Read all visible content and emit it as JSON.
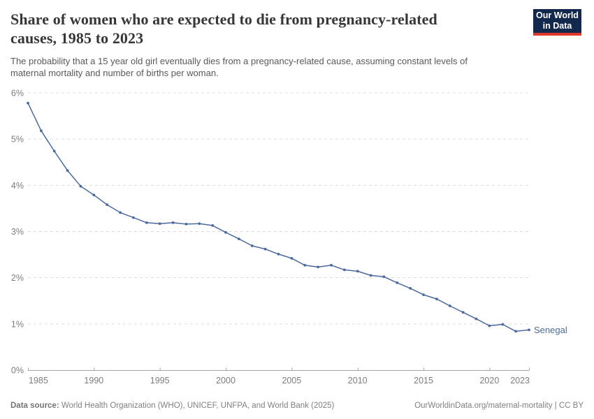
{
  "header": {
    "title_lines": [
      "Share of women who are expected to die from pregnancy-related",
      "causes, 1985 to 2023"
    ],
    "subtitle_lines": [
      "The probability that a 15 year old girl eventually dies from a pregnancy-related cause, assuming constant levels of",
      "maternal mortality and number of births per woman."
    ],
    "logo_lines": [
      "Our World",
      "in Data"
    ]
  },
  "chart_data": {
    "type": "line",
    "title": "Share of women who are expected to die from pregnancy-related causes, 1985 to 2023",
    "x": [
      1985,
      1986,
      1987,
      1988,
      1989,
      1990,
      1991,
      1992,
      1993,
      1994,
      1995,
      1996,
      1997,
      1998,
      1999,
      2000,
      2001,
      2002,
      2003,
      2004,
      2005,
      2006,
      2007,
      2008,
      2009,
      2010,
      2011,
      2012,
      2013,
      2014,
      2015,
      2016,
      2017,
      2018,
      2019,
      2020,
      2021,
      2022,
      2023
    ],
    "series": [
      {
        "name": "Senegal",
        "color": "#4c6a9c",
        "values": [
          5.78,
          5.18,
          4.74,
          4.32,
          3.98,
          3.79,
          3.58,
          3.41,
          3.3,
          3.19,
          3.17,
          3.19,
          3.16,
          3.17,
          3.13,
          2.98,
          2.84,
          2.69,
          2.62,
          2.51,
          2.42,
          2.27,
          2.23,
          2.27,
          2.17,
          2.14,
          2.05,
          2.02,
          1.89,
          1.77,
          1.63,
          1.54,
          1.39,
          1.25,
          1.11,
          0.96,
          0.99,
          0.84,
          0.87
        ]
      }
    ],
    "xlabel": "",
    "ylabel": "",
    "xlim": [
      1985,
      2023
    ],
    "ylim": [
      0,
      6
    ],
    "x_ticks": [
      1985,
      1990,
      1995,
      2000,
      2005,
      2010,
      2015,
      2020,
      2023
    ],
    "x_tick_labels": [
      "1985",
      "1990",
      "1995",
      "2000",
      "2005",
      "2010",
      "2015",
      "2020",
      "2023"
    ],
    "y_ticks": [
      0,
      1,
      2,
      3,
      4,
      5,
      6
    ],
    "y_tick_labels": [
      "0%",
      "1%",
      "2%",
      "3%",
      "4%",
      "5%",
      "6%"
    ],
    "grid": "horizontal-dashed",
    "legend_position": "end-of-line",
    "end_label": "Senegal"
  },
  "colors": {
    "line": "#4c6a9c",
    "grid": "#dcdcdc",
    "axis": "#a3a3a3",
    "tick_text": "#7d7d7d",
    "logo_bg": "#12294d",
    "logo_red": "#e0362b"
  },
  "footer": {
    "datasource_label": "Data source:",
    "datasource_text": " World Health Organization (WHO), UNICEF, UNFPA, and World Bank (2025)",
    "link_text": "OurWorldinData.org/maternal-mortality | CC BY"
  }
}
